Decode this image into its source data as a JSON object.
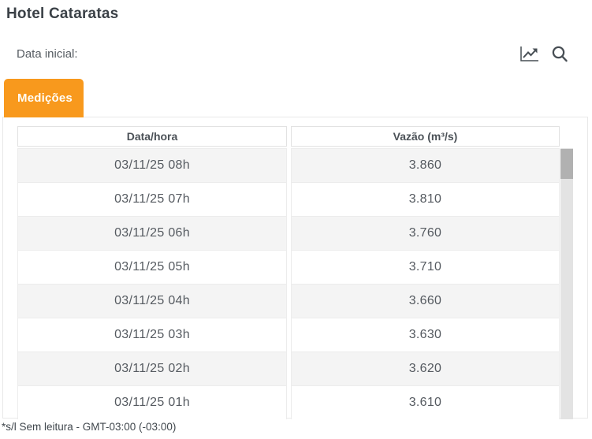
{
  "page": {
    "title": "Hotel Cataratas",
    "footer_note": "*s/l Sem leitura - GMT-03:00 (-03:00)"
  },
  "filters": {
    "date_initial_label": "Data inicial:"
  },
  "actions": {
    "chart_icon": "line-chart-icon",
    "search_icon": "search-icon"
  },
  "tabs": [
    {
      "label": "Medições",
      "active": true
    }
  ],
  "table": {
    "columns": [
      "Data/hora",
      "Vazão (m³/s)"
    ],
    "rows": [
      {
        "datetime": "03/11/25 08h",
        "flow": "3.860"
      },
      {
        "datetime": "03/11/25 07h",
        "flow": "3.810"
      },
      {
        "datetime": "03/11/25 06h",
        "flow": "3.760"
      },
      {
        "datetime": "03/11/25 05h",
        "flow": "3.710"
      },
      {
        "datetime": "03/11/25 04h",
        "flow": "3.660"
      },
      {
        "datetime": "03/11/25 03h",
        "flow": "3.630"
      },
      {
        "datetime": "03/11/25 02h",
        "flow": "3.620"
      },
      {
        "datetime": "03/11/25 01h",
        "flow": "3.610"
      }
    ]
  },
  "colors": {
    "accent_orange": "#F8991D",
    "title_text": "#3b4147",
    "body_text": "#555a60",
    "row_stripe": "#f4f4f4",
    "border": "#ececec",
    "scroll_track": "#e3e3e3",
    "scroll_thumb": "#b1b1b1"
  }
}
